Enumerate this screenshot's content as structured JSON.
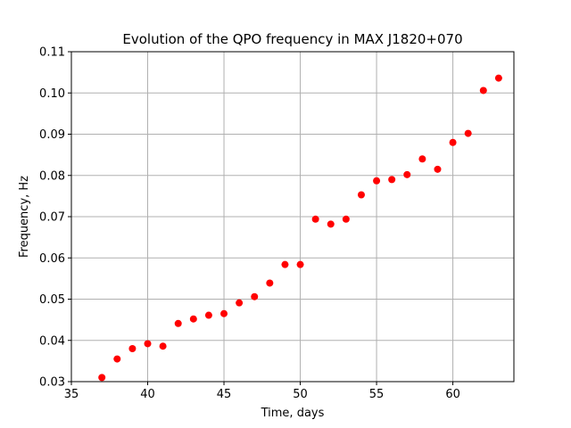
{
  "chart_data": {
    "type": "scatter",
    "title": "Evolution of the QPO frequency in MAX J1820+070",
    "xlabel": "Time, days",
    "ylabel": "Frequency, Hz",
    "xlim": [
      35,
      64
    ],
    "ylim": [
      0.03,
      0.11
    ],
    "xticks": [
      35,
      40,
      45,
      50,
      55,
      60
    ],
    "xtick_labels": [
      "35",
      "40",
      "45",
      "50",
      "55",
      "60"
    ],
    "yticks": [
      0.03,
      0.04,
      0.05,
      0.06,
      0.07,
      0.08,
      0.09,
      0.1,
      0.11
    ],
    "ytick_labels": [
      "0.03",
      "0.04",
      "0.05",
      "0.06",
      "0.07",
      "0.08",
      "0.09",
      "0.10",
      "0.11"
    ],
    "grid": true,
    "marker_color": "#ff0000",
    "grid_color": "#b0b0b0",
    "series": [
      {
        "x": [
          37,
          38,
          39,
          40,
          41,
          42,
          43,
          44,
          45,
          46,
          47,
          48,
          49,
          50,
          51,
          52,
          53,
          54,
          55,
          56,
          57,
          58,
          59,
          60,
          61,
          62,
          63
        ],
        "y": [
          0.031,
          0.0355,
          0.038,
          0.0392,
          0.0386,
          0.0441,
          0.0452,
          0.0461,
          0.0465,
          0.0491,
          0.0506,
          0.0539,
          0.0584,
          0.0584,
          0.0694,
          0.0682,
          0.0694,
          0.0753,
          0.0787,
          0.079,
          0.0802,
          0.084,
          0.0815,
          0.088,
          0.0902,
          0.1006,
          0.1036
        ]
      }
    ]
  }
}
